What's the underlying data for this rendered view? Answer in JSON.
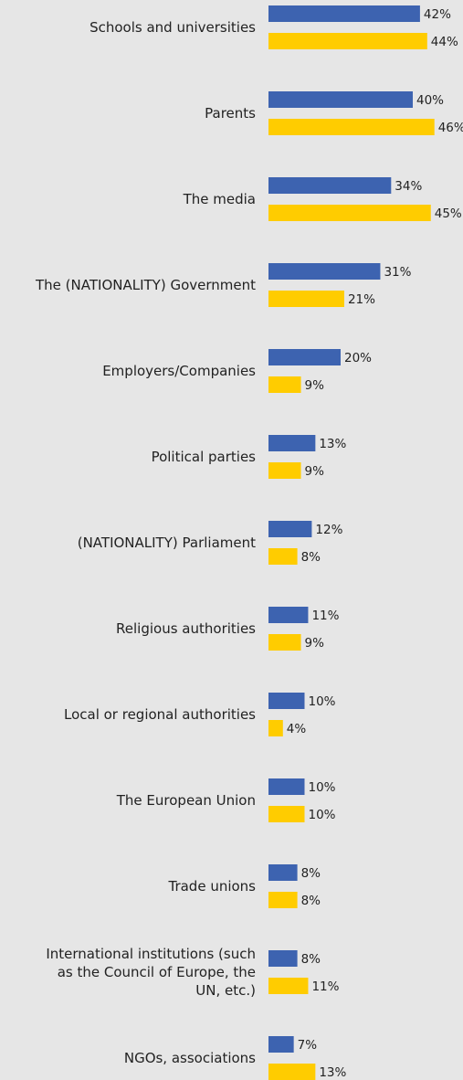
{
  "chart_data": {
    "type": "bar",
    "orientation": "horizontal",
    "grid": false,
    "legend": "none",
    "xlim": [
      0,
      50
    ],
    "categories": [
      [
        "Schools and universities"
      ],
      [
        "Parents"
      ],
      [
        "The media"
      ],
      [
        "The (NATIONALITY) Government"
      ],
      [
        "Employers/Companies"
      ],
      [
        "Political parties"
      ],
      [
        "(NATIONALITY) Parliament"
      ],
      [
        "Religious authorities"
      ],
      [
        "Local or regional authorities"
      ],
      [
        "The European Union"
      ],
      [
        "Trade unions"
      ],
      [
        "International institutions (such",
        "as the Council of Europe, the",
        "UN, etc.)"
      ],
      [
        "NGOs, associations"
      ]
    ],
    "series": [
      {
        "color": "#3d63b0",
        "values": [
          42,
          40,
          34,
          31,
          20,
          13,
          12,
          11,
          10,
          10,
          8,
          8,
          7
        ]
      },
      {
        "color": "#ffcc00",
        "values": [
          44,
          46,
          45,
          21,
          9,
          9,
          8,
          9,
          4,
          10,
          8,
          11,
          13
        ]
      }
    ],
    "value_suffix": "%"
  }
}
